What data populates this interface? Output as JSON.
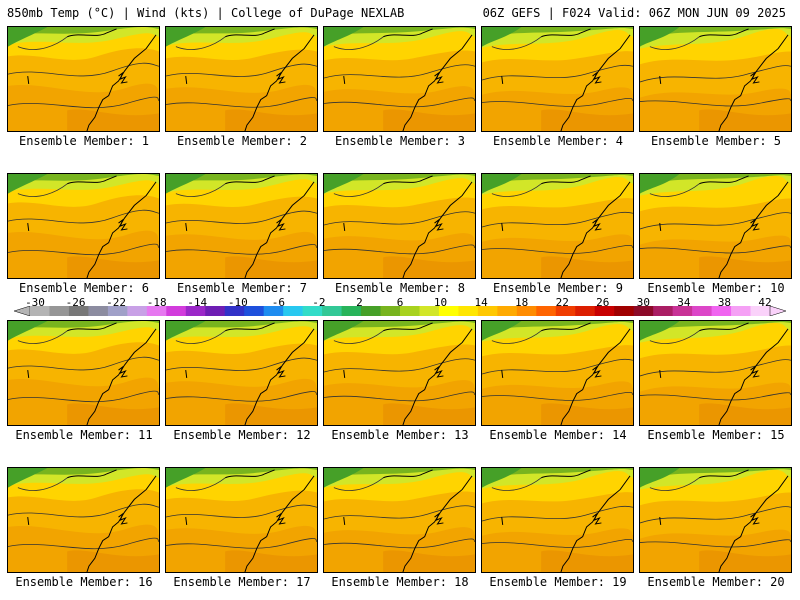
{
  "header": {
    "left": "850mb Temp (°C) | Wind (kts) | College of DuPage NEXLAB",
    "right": "06Z GEFS | F024 Valid: 06Z MON JUN 09 2025"
  },
  "panels": [
    {
      "label": "Ensemble Member: 1"
    },
    {
      "label": "Ensemble Member: 2"
    },
    {
      "label": "Ensemble Member: 3"
    },
    {
      "label": "Ensemble Member: 4"
    },
    {
      "label": "Ensemble Member: 5"
    },
    {
      "label": "Ensemble Member: 6"
    },
    {
      "label": "Ensemble Member: 7"
    },
    {
      "label": "Ensemble Member: 8"
    },
    {
      "label": "Ensemble Member: 9"
    },
    {
      "label": "Ensemble Member: 10"
    },
    {
      "label": "Ensemble Member: 11"
    },
    {
      "label": "Ensemble Member: 12"
    },
    {
      "label": "Ensemble Member: 13"
    },
    {
      "label": "Ensemble Member: 14"
    },
    {
      "label": "Ensemble Member: 15"
    },
    {
      "label": "Ensemble Member: 16"
    },
    {
      "label": "Ensemble Member: 17"
    },
    {
      "label": "Ensemble Member: 18"
    },
    {
      "label": "Ensemble Member: 19"
    },
    {
      "label": "Ensemble Member: 20"
    }
  ],
  "colorbar": {
    "ticks": [
      "-30",
      "-26",
      "-22",
      "-18",
      "-14",
      "-10",
      "-6",
      "-2",
      "2",
      "6",
      "10",
      "14",
      "18",
      "22",
      "26",
      "30",
      "34",
      "38",
      "42"
    ],
    "colors": [
      "#b4b4b4",
      "#969696",
      "#787878",
      "#8c8ca0",
      "#a0a0c8",
      "#c8a0e6",
      "#e678f0",
      "#d23cdc",
      "#9b28c8",
      "#6e1eb4",
      "#3232c8",
      "#1e50dc",
      "#1e8cf0",
      "#28c8f0",
      "#32dcc8",
      "#32c896",
      "#28b45a",
      "#46a028",
      "#78b41e",
      "#a8d21e",
      "#d2e628",
      "#ffff00",
      "#ffe600",
      "#ffc800",
      "#ffaa00",
      "#ff8c00",
      "#ff6400",
      "#f03c00",
      "#dc1e00",
      "#c80000",
      "#a00000",
      "#8c0a28",
      "#aa1e64",
      "#c83296",
      "#dc46c8",
      "#f064f0",
      "#f5a0f5",
      "#fad2fa"
    ]
  }
}
